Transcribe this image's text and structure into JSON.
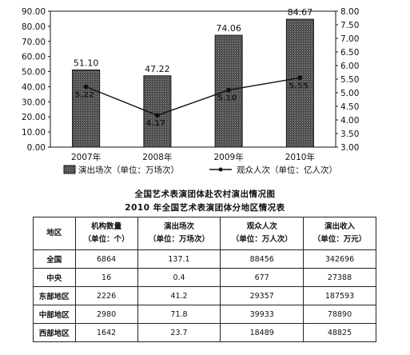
{
  "chart_data": {
    "type": "bar+line",
    "categories": [
      "2007年",
      "2008年",
      "2009年",
      "2010年"
    ],
    "series": [
      {
        "name": "演出场次（单位：万场次）",
        "type": "bar",
        "axis": "left",
        "values": [
          51.1,
          47.22,
          74.06,
          84.67
        ],
        "value_labels": [
          "51.10",
          "47.22",
          "74.06",
          "84.67"
        ]
      },
      {
        "name": "观众人次（单位：亿人次）",
        "type": "line",
        "axis": "right",
        "values": [
          5.22,
          4.17,
          5.1,
          5.55
        ],
        "value_labels": [
          "5.22",
          "4.17",
          "5.10",
          "5.55"
        ]
      }
    ],
    "ylim_left": [
      0,
      90
    ],
    "yticks_left": [
      "0.00",
      "10.00",
      "20.00",
      "30.00",
      "40.00",
      "50.00",
      "60.00",
      "70.00",
      "80.00",
      "90.00"
    ],
    "ylim_right": [
      3.0,
      8.0
    ],
    "yticks_right": [
      "3.00",
      "3.50",
      "4.00",
      "4.50",
      "5.00",
      "5.50",
      "6.00",
      "6.50",
      "7.00",
      "7.50",
      "8.00"
    ],
    "legend_position": "bottom",
    "colors": {
      "bar_fill": "#505050",
      "bar_stroke": "#111111",
      "line": "#111111"
    }
  },
  "chart_title": "全国艺术表演团体赴农村演出情况图",
  "table_title": "2010 年全国艺术表演团体分地区情况表",
  "table": {
    "headers": [
      {
        "line1": "地区",
        "line2": ""
      },
      {
        "line1": "机构数量",
        "line2": "（单位：个）"
      },
      {
        "line1": "演出场次",
        "line2": "（单位：万场次）"
      },
      {
        "line1": "观众人次",
        "line2": "（单位：万人次）"
      },
      {
        "line1": "演出收入",
        "line2": "（单位：万元）"
      }
    ],
    "rows": [
      [
        "全国",
        "6864",
        "137.1",
        "88456",
        "342696"
      ],
      [
        "中央",
        "16",
        "0.4",
        "677",
        "27388"
      ],
      [
        "东部地区",
        "2226",
        "41.2",
        "29357",
        "187593"
      ],
      [
        "中部地区",
        "2980",
        "71.8",
        "39933",
        "78890"
      ],
      [
        "西部地区",
        "1642",
        "23.7",
        "18489",
        "48825"
      ]
    ]
  }
}
